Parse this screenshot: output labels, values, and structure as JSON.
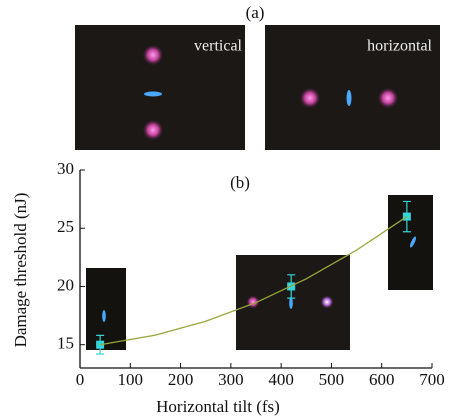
{
  "panel_a": {
    "label": "(a)",
    "images": [
      {
        "label": "vertical"
      },
      {
        "label": "horizontal"
      }
    ]
  },
  "chart_data": {
    "type": "scatter",
    "label": "(b)",
    "x_label": "Horizontal tilt (fs)",
    "y_label": "Damage threshold (nJ)",
    "xlim": [
      0,
      700
    ],
    "xticks": [
      0,
      100,
      200,
      300,
      400,
      500,
      600,
      700
    ],
    "ylim": [
      13,
      30
    ],
    "yticks": [
      15,
      20,
      25,
      30
    ],
    "series": [
      {
        "type": "scatter",
        "color": "#35d3da",
        "x": [
          40,
          420,
          650
        ],
        "values": [
          15,
          20,
          26
        ],
        "errors": [
          0.8,
          1,
          1.3
        ]
      },
      {
        "type": "line",
        "color": "#9aa63a",
        "x": [
          40,
          150,
          250,
          350,
          450,
          550,
          650
        ],
        "values": [
          15,
          15.82,
          17.01,
          18.62,
          20.66,
          23.12,
          26
        ]
      }
    ]
  }
}
